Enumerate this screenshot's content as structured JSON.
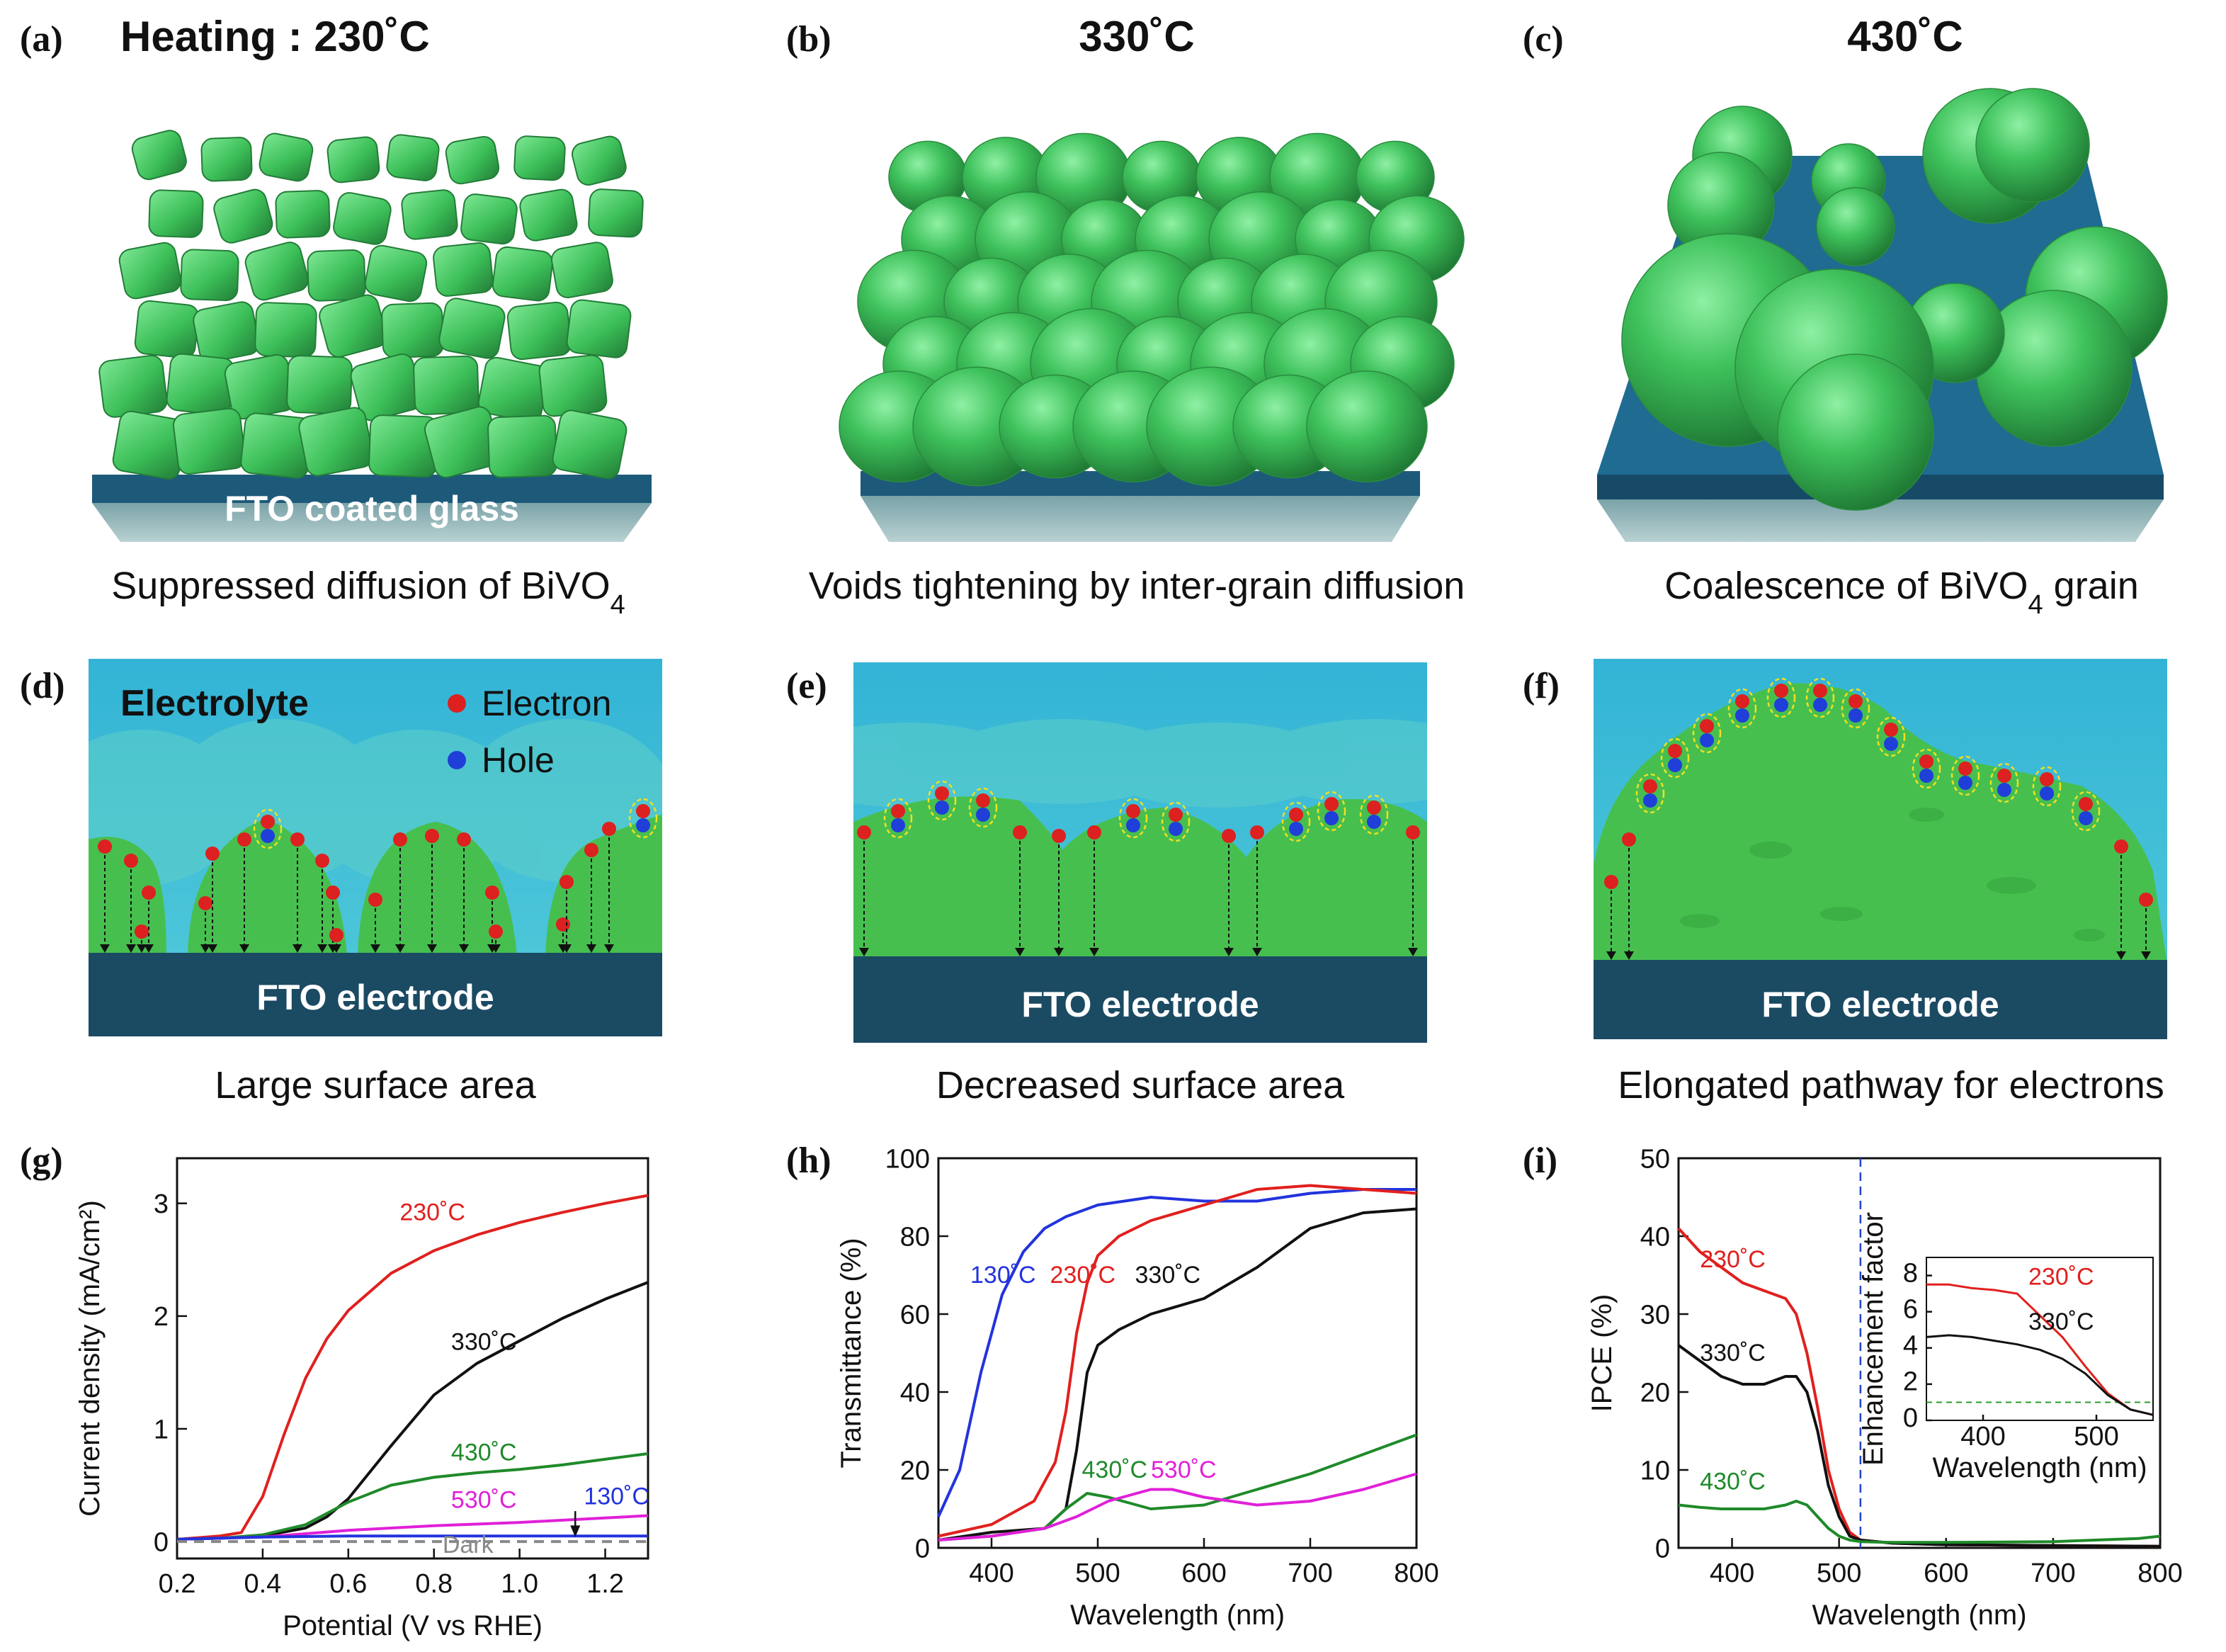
{
  "figure": {
    "panels_top": [
      {
        "letter": "(a)",
        "title": "Heating : 230˚C",
        "caption_main": "Suppressed diffusion of BiVO",
        "caption_sub": "4",
        "caption_tail": "",
        "substrate_label": "FTO coated glass"
      },
      {
        "letter": "(b)",
        "title": "330˚C",
        "caption_main": "Voids tightening by inter-grain diffusion",
        "caption_sub": "",
        "caption_tail": "",
        "substrate_label": ""
      },
      {
        "letter": "(c)",
        "title": "430˚C",
        "caption_main": "Coalescence of BiVO",
        "caption_sub": "4",
        "caption_tail": " grain",
        "substrate_label": ""
      }
    ],
    "panels_middle": [
      {
        "letter": "(d)",
        "electrode_label": "FTO electrode",
        "caption": "Large surface area"
      },
      {
        "letter": "(e)",
        "electrode_label": "FTO electrode",
        "caption": "Decreased surface area"
      },
      {
        "letter": "(f)",
        "electrode_label": "FTO electrode",
        "caption": "Elongated pathway for electrons"
      }
    ],
    "legend": {
      "electrolyte": "Electrolyte",
      "electron": "Electron",
      "hole": "Hole"
    },
    "colors": {
      "grain": "#3fbf5c",
      "substrate": "#1d5a7a",
      "electrolyte": "#35b5d3",
      "electrode": "#1b4a63",
      "electron": "#dd2020",
      "hole": "#1f3fd8"
    },
    "icons": [
      "grain-cube-icon",
      "grain-sphere-icon",
      "electron-dot-icon",
      "hole-dot-icon"
    ]
  },
  "chart_data": [
    {
      "type": "line",
      "panel": "(g)",
      "xlabel": "Potential (V vs RHE)",
      "ylabel": "Current density (mA/cm²)",
      "xlim": [
        0.2,
        1.3
      ],
      "ylim": [
        -0.15,
        3.4
      ],
      "xticks": [
        0.2,
        0.4,
        0.6,
        0.8,
        1.0,
        1.2
      ],
      "xtick_labels": [
        "0.2",
        "0.4",
        "0.6",
        "0.8",
        "1.0",
        "1.2"
      ],
      "yticks": [
        0,
        1,
        2,
        3
      ],
      "ytick_labels": [
        "0",
        "1",
        "2",
        "3"
      ],
      "series": [
        {
          "name": "230˚C",
          "color": "#e0201e",
          "dash": "",
          "x": [
            0.2,
            0.3,
            0.35,
            0.4,
            0.45,
            0.5,
            0.55,
            0.6,
            0.7,
            0.8,
            0.9,
            1.0,
            1.1,
            1.2,
            1.3
          ],
          "y": [
            0.02,
            0.05,
            0.08,
            0.4,
            0.95,
            1.45,
            1.8,
            2.05,
            2.38,
            2.58,
            2.72,
            2.83,
            2.92,
            3.0,
            3.07
          ]
        },
        {
          "name": "330˚C",
          "color": "#111111",
          "dash": "",
          "x": [
            0.2,
            0.3,
            0.4,
            0.5,
            0.55,
            0.6,
            0.7,
            0.8,
            0.9,
            1.0,
            1.1,
            1.2,
            1.3
          ],
          "y": [
            0.02,
            0.03,
            0.05,
            0.12,
            0.22,
            0.38,
            0.85,
            1.3,
            1.58,
            1.78,
            1.98,
            2.15,
            2.3
          ]
        },
        {
          "name": "430˚C",
          "color": "#1f8a2a",
          "dash": "",
          "x": [
            0.2,
            0.3,
            0.4,
            0.5,
            0.6,
            0.7,
            0.8,
            0.9,
            1.0,
            1.1,
            1.2,
            1.3
          ],
          "y": [
            0.02,
            0.03,
            0.06,
            0.15,
            0.35,
            0.5,
            0.57,
            0.61,
            0.64,
            0.68,
            0.73,
            0.78
          ]
        },
        {
          "name": "530˚C",
          "color": "#e020d8",
          "dash": "",
          "x": [
            0.2,
            0.4,
            0.6,
            0.8,
            1.0,
            1.2,
            1.3
          ],
          "y": [
            0.02,
            0.04,
            0.1,
            0.14,
            0.17,
            0.21,
            0.23
          ]
        },
        {
          "name": "130˚C",
          "color": "#2233dd",
          "dash": "",
          "x": [
            0.2,
            0.4,
            0.6,
            0.8,
            1.0,
            1.2,
            1.3
          ],
          "y": [
            0.02,
            0.04,
            0.05,
            0.05,
            0.05,
            0.05,
            0.05
          ]
        },
        {
          "name": "Dark",
          "color": "#888888",
          "dash": "14,10",
          "x": [
            0.2,
            0.4,
            0.6,
            0.8,
            1.0,
            1.2,
            1.3
          ],
          "y": [
            0.0,
            0.0,
            0.0,
            0.0,
            0.0,
            0.0,
            0.0
          ]
        }
      ],
      "annotations": [
        {
          "text": "230˚C",
          "color": "#e0201e",
          "x": 0.72,
          "y": 2.85
        },
        {
          "text": "330˚C",
          "color": "#111111",
          "x": 0.84,
          "y": 1.7
        },
        {
          "text": "430˚C",
          "color": "#1f8a2a",
          "x": 0.84,
          "y": 0.72
        },
        {
          "text": "530˚C",
          "color": "#e020d8",
          "x": 0.84,
          "y": 0.3
        },
        {
          "text": "130˚C",
          "color": "#2233dd",
          "x": 1.15,
          "y": 0.33
        },
        {
          "text": "Dark",
          "color": "#888888",
          "x": 0.82,
          "y": -0.1
        }
      ]
    },
    {
      "type": "line",
      "panel": "(h)",
      "xlabel": "Wavelength (nm)",
      "ylabel": "Transmittance (%)",
      "xlim": [
        350,
        800
      ],
      "ylim": [
        0,
        100
      ],
      "xticks": [
        400,
        500,
        600,
        700,
        800
      ],
      "xtick_labels": [
        "400",
        "500",
        "600",
        "700",
        "800"
      ],
      "yticks": [
        0,
        20,
        40,
        60,
        80,
        100
      ],
      "ytick_labels": [
        "0",
        "20",
        "40",
        "60",
        "80",
        "100"
      ],
      "series": [
        {
          "name": "130˚C",
          "color": "#2233dd",
          "x": [
            350,
            370,
            390,
            410,
            430,
            450,
            470,
            500,
            550,
            600,
            650,
            700,
            750,
            800
          ],
          "y": [
            8,
            20,
            45,
            65,
            76,
            82,
            85,
            88,
            90,
            89,
            89,
            91,
            92,
            92
          ]
        },
        {
          "name": "230˚C",
          "color": "#e0201e",
          "x": [
            350,
            400,
            440,
            460,
            470,
            480,
            490,
            500,
            520,
            550,
            600,
            650,
            700,
            750,
            800
          ],
          "y": [
            3,
            6,
            12,
            22,
            35,
            55,
            68,
            75,
            80,
            84,
            88,
            92,
            93,
            92,
            91
          ]
        },
        {
          "name": "330˚C",
          "color": "#111111",
          "x": [
            350,
            400,
            450,
            470,
            480,
            490,
            500,
            520,
            550,
            600,
            650,
            700,
            750,
            800
          ],
          "y": [
            2,
            4,
            5,
            10,
            25,
            45,
            52,
            56,
            60,
            64,
            72,
            82,
            86,
            87
          ]
        },
        {
          "name": "430˚C",
          "color": "#1f8a2a",
          "x": [
            350,
            400,
            450,
            470,
            490,
            510,
            550,
            600,
            650,
            700,
            750,
            800
          ],
          "y": [
            2,
            3,
            5,
            10,
            14,
            13,
            10,
            11,
            15,
            19,
            24,
            29
          ]
        },
        {
          "name": "530˚C",
          "color": "#e020d8",
          "x": [
            350,
            400,
            450,
            480,
            510,
            550,
            570,
            600,
            650,
            700,
            750,
            800
          ],
          "y": [
            2,
            3,
            5,
            8,
            12,
            15,
            15,
            13,
            11,
            12,
            15,
            19
          ]
        }
      ],
      "annotations": [
        {
          "text": "130˚C",
          "color": "#2233dd",
          "x": 380,
          "y": 68
        },
        {
          "text": "230˚C",
          "color": "#e0201e",
          "x": 455,
          "y": 68
        },
        {
          "text": "330˚C",
          "color": "#111111",
          "x": 535,
          "y": 68
        },
        {
          "text": "430˚C",
          "color": "#1f8a2a",
          "x": 485,
          "y": 18
        },
        {
          "text": "530˚C",
          "color": "#e020d8",
          "x": 550,
          "y": 18
        }
      ]
    },
    {
      "type": "line",
      "panel": "(i)",
      "xlabel": "Wavelength (nm)",
      "ylabel": "IPCE (%)",
      "xlim": [
        350,
        800
      ],
      "ylim": [
        0,
        50
      ],
      "xticks": [
        400,
        500,
        600,
        700,
        800
      ],
      "xtick_labels": [
        "400",
        "500",
        "600",
        "700",
        "800"
      ],
      "yticks": [
        0,
        10,
        20,
        30,
        40,
        50
      ],
      "ytick_labels": [
        "0",
        "10",
        "20",
        "30",
        "40",
        "50"
      ],
      "vline": {
        "x": 520,
        "color": "#2244cc"
      },
      "series": [
        {
          "name": "230˚C",
          "color": "#e0201e",
          "x": [
            350,
            370,
            390,
            410,
            430,
            450,
            460,
            470,
            480,
            490,
            500,
            510,
            520,
            550,
            600,
            700,
            800
          ],
          "y": [
            41,
            38,
            36,
            34,
            33,
            32,
            30,
            25,
            18,
            10,
            5,
            2,
            1,
            0.6,
            0.4,
            0.3,
            0.2
          ]
        },
        {
          "name": "330˚C",
          "color": "#111111",
          "x": [
            350,
            370,
            390,
            410,
            430,
            450,
            460,
            470,
            480,
            490,
            500,
            510,
            520,
            550,
            600,
            700,
            800
          ],
          "y": [
            26,
            24,
            22,
            21,
            21,
            22,
            22,
            20,
            15,
            8,
            4,
            1.5,
            1,
            0.6,
            0.4,
            0.3,
            0.2
          ]
        },
        {
          "name": "430˚C",
          "color": "#1f8a2a",
          "x": [
            350,
            370,
            390,
            410,
            430,
            450,
            460,
            470,
            480,
            490,
            500,
            510,
            520,
            550,
            600,
            700,
            780,
            800
          ],
          "y": [
            5.5,
            5.2,
            5,
            5,
            5,
            5.5,
            6,
            5.5,
            4,
            2.5,
            1.5,
            1,
            0.8,
            0.7,
            0.7,
            0.8,
            1.2,
            1.5
          ]
        }
      ],
      "annotations": [
        {
          "text": "230˚C",
          "color": "#e0201e",
          "x": 370,
          "y": 36
        },
        {
          "text": "330˚C",
          "color": "#111111",
          "x": 370,
          "y": 24
        },
        {
          "text": "430˚C",
          "color": "#1f8a2a",
          "x": 370,
          "y": 7.5
        }
      ],
      "inset": {
        "xlabel": "Wavelength (nm)",
        "ylabel": "Enhancement factor",
        "xlim": [
          350,
          550
        ],
        "ylim": [
          0,
          9
        ],
        "xticks": [
          400,
          500
        ],
        "xtick_labels": [
          "400",
          "500"
        ],
        "yticks": [
          0,
          2,
          4,
          6,
          8
        ],
        "ytick_labels": [
          "0",
          "2",
          "4",
          "6",
          "8"
        ],
        "hline": {
          "y": 1,
          "color": "#2a9a2a"
        },
        "series": [
          {
            "name": "230˚C",
            "color": "#e0201e",
            "x": [
              350,
              370,
              390,
              410,
              430,
              450,
              470,
              490,
              510,
              530,
              550
            ],
            "y": [
              7.5,
              7.5,
              7.3,
              7.2,
              7.0,
              5.8,
              4.6,
              3.0,
              1.5,
              0.6,
              0.3
            ]
          },
          {
            "name": "330˚C",
            "color": "#111111",
            "x": [
              350,
              370,
              390,
              410,
              430,
              450,
              470,
              490,
              510,
              530,
              550
            ],
            "y": [
              4.6,
              4.7,
              4.6,
              4.4,
              4.2,
              3.9,
              3.4,
              2.6,
              1.4,
              0.6,
              0.3
            ]
          }
        ],
        "annotations": [
          {
            "text": "230˚C",
            "color": "#e0201e",
            "x": 440,
            "y": 7.5
          },
          {
            "text": "330˚C",
            "color": "#111111",
            "x": 440,
            "y": 5.0
          }
        ]
      }
    }
  ]
}
